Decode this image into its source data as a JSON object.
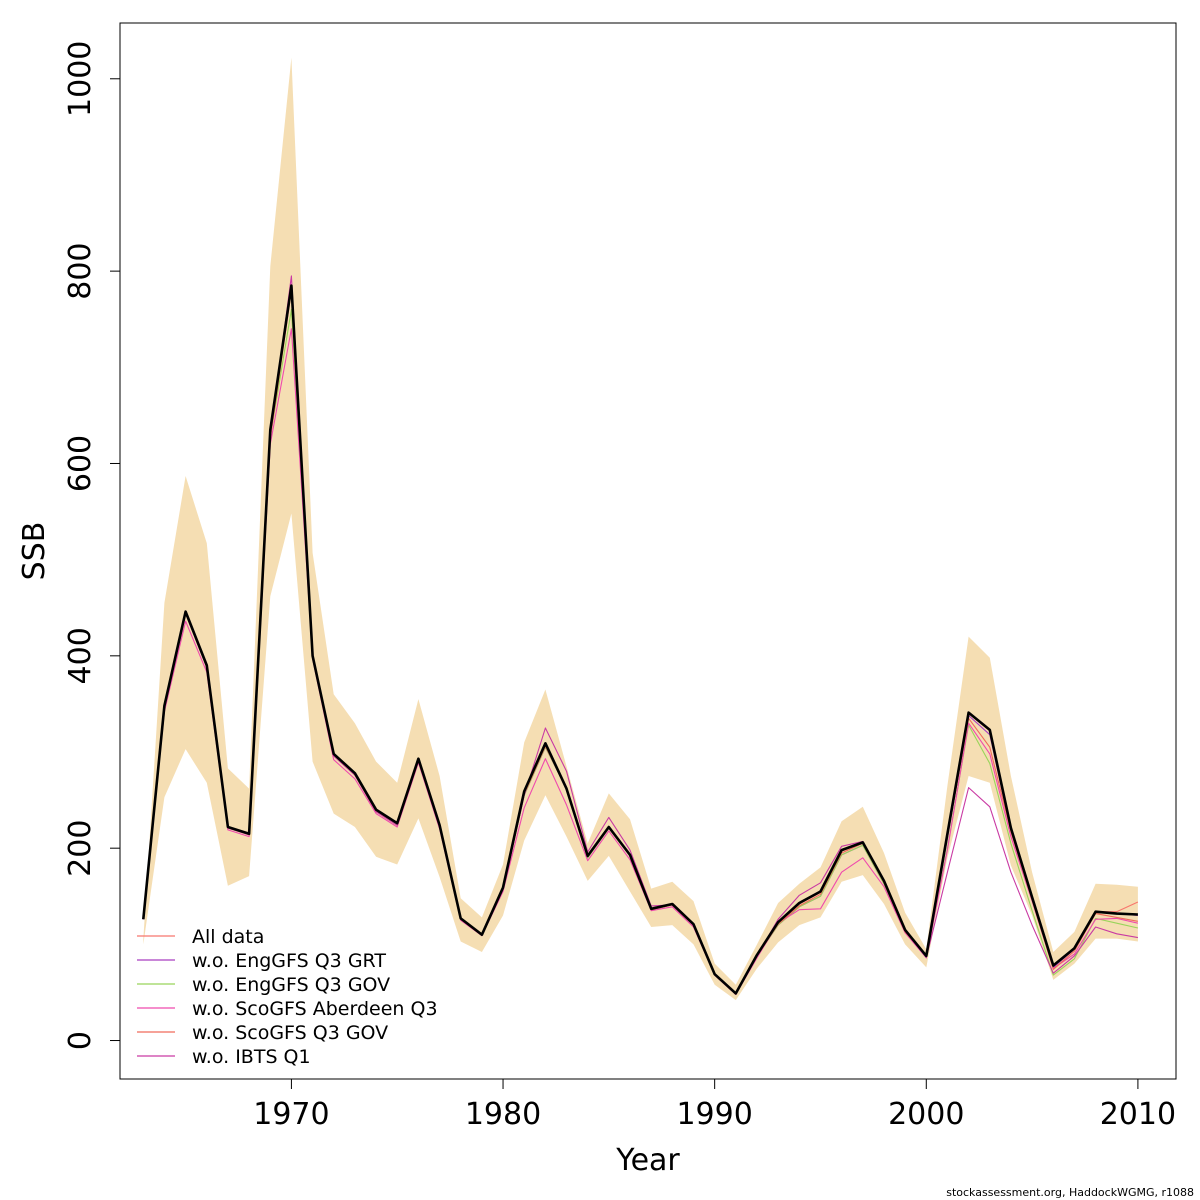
{
  "chart_data": {
    "type": "line",
    "xlabel": "Year",
    "ylabel": "SSB",
    "xlim": [
      1961.9,
      2011.8
    ],
    "ylim": [
      -40,
      1058
    ],
    "xticks": [
      1970,
      1980,
      1990,
      2000,
      2010
    ],
    "yticks": [
      0,
      200,
      400,
      600,
      800,
      1000
    ],
    "legend_position": "bottom-left",
    "credit": "stockassessment.org, HaddockWGMG, r1088",
    "x": [
      1963,
      1964,
      1965,
      1966,
      1967,
      1968,
      1969,
      1970,
      1971,
      1972,
      1973,
      1974,
      1975,
      1976,
      1977,
      1978,
      1979,
      1980,
      1981,
      1982,
      1983,
      1984,
      1985,
      1986,
      1987,
      1988,
      1989,
      1990,
      1991,
      1992,
      1993,
      1994,
      1995,
      1996,
      1997,
      1998,
      1999,
      2000,
      2001,
      2002,
      2003,
      2004,
      2005,
      2006,
      2007,
      2008,
      2009,
      2010
    ],
    "band": {
      "color": "#f5deb3",
      "upper": [
        105,
        455,
        587,
        517,
        283,
        262,
        805,
        1022,
        507,
        360,
        330,
        290,
        268,
        355,
        275,
        148,
        128,
        183,
        310,
        365,
        285,
        205,
        257,
        230,
        158,
        165,
        145,
        80,
        58,
        100,
        143,
        163,
        180,
        228,
        243,
        195,
        133,
        95,
        265,
        420,
        398,
        275,
        175,
        92,
        113,
        163,
        162,
        160
      ],
      "lower": [
        100,
        253,
        303,
        268,
        161,
        171,
        462,
        548,
        290,
        236,
        222,
        191,
        183,
        231,
        170,
        103,
        92,
        130,
        208,
        255,
        212,
        166,
        192,
        155,
        118,
        120,
        100,
        58,
        42,
        75,
        102,
        120,
        128,
        165,
        172,
        142,
        100,
        76,
        190,
        275,
        268,
        182,
        130,
        63,
        80,
        106,
        106,
        103
      ]
    },
    "series": [
      {
        "name": "All data",
        "color": "#f8766d",
        "values": [
          126,
          347,
          445,
          389,
          221,
          215,
          630,
          785,
          400,
          297,
          277,
          239,
          225,
          292,
          224,
          127,
          110,
          158,
          257,
          307,
          262,
          193,
          222,
          193,
          136,
          141,
          120,
          68,
          48,
          88,
          122,
          142,
          154,
          197,
          206,
          165,
          114,
          88,
          215,
          340,
          322,
          220,
          148,
          76,
          95,
          134,
          134,
          144
        ]
      },
      {
        "name": "w.o. EngGFS Q3 GRT",
        "color": "#a93fc0",
        "values": [
          126,
          345,
          444,
          388,
          221,
          214,
          628,
          783,
          398,
          296,
          276,
          238,
          224,
          291,
          223,
          126,
          110,
          157,
          255,
          305,
          262,
          190,
          221,
          192,
          136,
          141,
          120,
          68,
          48,
          88,
          120,
          139,
          150,
          193,
          203,
          163,
          113,
          87,
          210,
          338,
          318,
          218,
          148,
          76,
          95,
          134,
          132,
          130
        ]
      },
      {
        "name": "w.o. EngGFS Q3 GOV",
        "color": "#99d45a",
        "values": [
          126,
          345,
          444,
          388,
          221,
          214,
          628,
          760,
          398,
          296,
          276,
          238,
          224,
          291,
          223,
          126,
          110,
          157,
          255,
          305,
          262,
          190,
          221,
          192,
          136,
          141,
          120,
          68,
          48,
          88,
          120,
          139,
          150,
          193,
          203,
          163,
          113,
          87,
          200,
          328,
          288,
          205,
          135,
          68,
          85,
          127,
          122,
          117
        ]
      },
      {
        "name": "w.o. ScoGFS Aberdeen Q3",
        "color": "#ef4aad",
        "values": [
          126,
          342,
          436,
          383,
          219,
          212,
          620,
          740,
          397,
          292,
          272,
          236,
          222,
          289,
          220,
          125,
          109,
          155,
          242,
          293,
          245,
          187,
          218,
          188,
          135,
          139,
          118,
          68,
          48,
          86,
          122,
          136,
          137,
          175,
          190,
          160,
          112,
          86,
          198,
          330,
          298,
          212,
          145,
          75,
          90,
          126,
          127,
          122
        ]
      },
      {
        "name": "w.o. ScoGFS Q3 GOV",
        "color": "#f06a5b",
        "values": [
          127,
          347,
          444,
          390,
          221,
          214,
          626,
          780,
          399,
          296,
          276,
          238,
          224,
          291,
          223,
          126,
          110,
          157,
          256,
          306,
          262,
          192,
          222,
          193,
          136,
          141,
          120,
          68,
          48,
          88,
          121,
          140,
          152,
          195,
          205,
          164,
          113,
          88,
          212,
          335,
          305,
          217,
          146,
          74,
          93,
          132,
          128,
          124
        ]
      },
      {
        "name": "w.o. IBTS Q1",
        "color": "#c93aa3",
        "values": [
          126,
          345,
          444,
          388,
          221,
          214,
          628,
          795,
          398,
          296,
          276,
          238,
          224,
          291,
          223,
          126,
          110,
          157,
          255,
          325,
          280,
          196,
          232,
          198,
          140,
          141,
          120,
          68,
          48,
          88,
          126,
          151,
          164,
          202,
          207,
          165,
          114,
          86,
          175,
          263,
          243,
          175,
          120,
          70,
          88,
          118,
          111,
          107
        ]
      },
      {
        "name": "",
        "color": "#000000",
        "values": [
          126,
          348,
          446,
          390,
          222,
          215,
          635,
          785,
          400,
          298,
          278,
          240,
          226,
          293,
          224,
          127,
          110,
          159,
          259,
          309,
          262,
          192,
          222,
          193,
          137,
          142,
          121,
          69,
          49,
          89,
          123,
          143,
          155,
          198,
          206,
          166,
          115,
          88,
          215,
          341,
          323,
          221,
          149,
          78,
          96,
          134,
          132,
          131
        ]
      }
    ]
  }
}
